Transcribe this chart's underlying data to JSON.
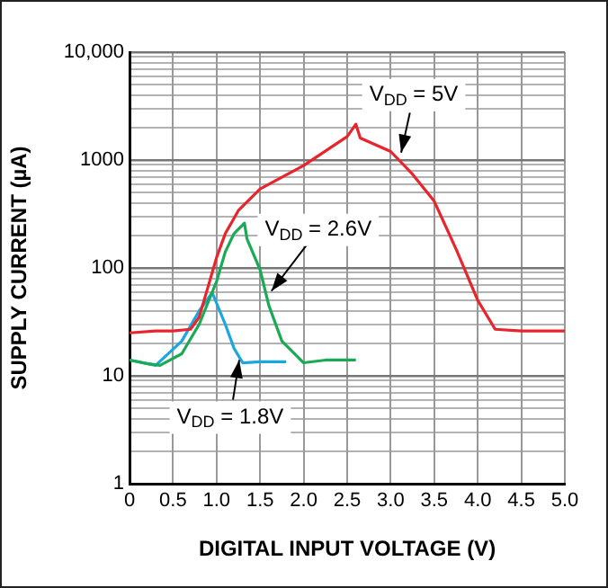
{
  "chart_data": {
    "type": "line",
    "xlabel": "DIGITAL INPUT VOLTAGE (V)",
    "ylabel": "SUPPLY CURRENT (µA)",
    "log": "y",
    "grid": true,
    "legend": false,
    "marker": "none",
    "line_style": "solid",
    "xlim": [
      0,
      5
    ],
    "xticks": [
      0,
      {
        "value": 0.5,
        "label": "0.5"
      },
      {
        "value": 1,
        "label": "1.0"
      },
      {
        "value": 1.5,
        "label": "1.5"
      },
      {
        "value": 2,
        "label": "2.0"
      },
      {
        "value": 2.5,
        "label": "2.5"
      },
      {
        "value": 3,
        "label": "3.0"
      },
      {
        "value": 3.5,
        "label": "3.5"
      },
      {
        "value": 4,
        "label": "4.0"
      },
      {
        "value": 4.5,
        "label": "4.5"
      },
      {
        "value": 5,
        "label": "5.0"
      }
    ],
    "ylim": [
      1,
      10000
    ],
    "yticks": [
      1,
      10,
      100,
      1000,
      {
        "value": 10000,
        "label": "10,000"
      }
    ],
    "series": [
      {
        "color": "#e8242c",
        "x": [
          0,
          0.3,
          0.5,
          0.7,
          0.8,
          0.9,
          1.0,
          1.1,
          1.25,
          1.5,
          2.0,
          2.5,
          2.6,
          2.65,
          3.0,
          3.25,
          3.5,
          3.75,
          4.0,
          4.2,
          4.5,
          5.0
        ],
        "values": [
          25,
          26,
          26,
          27,
          35,
          66,
          125,
          208,
          340,
          540,
          890,
          1650,
          2150,
          1600,
          1200,
          740,
          415,
          150,
          50,
          27,
          26,
          26
        ]
      },
      {
        "color": "#1aaa55",
        "x": [
          0,
          0.2,
          0.35,
          0.6,
          0.8,
          1.0,
          1.1,
          1.2,
          1.32,
          1.35,
          1.5,
          1.6,
          1.75,
          2.0,
          2.25,
          2.6
        ],
        "values": [
          14,
          13,
          12.5,
          16,
          30,
          75,
          141,
          208,
          260,
          185,
          96,
          45,
          21,
          13.2,
          14,
          14
        ]
      },
      {
        "color": "#1aa7e0",
        "x": [
          0,
          0.3,
          0.6,
          0.8,
          0.95,
          1.1,
          1.2,
          1.3,
          1.5,
          1.8
        ],
        "values": [
          14,
          12.5,
          21,
          40,
          59,
          30,
          18,
          13.2,
          13.5,
          13.5
        ]
      }
    ],
    "annotations": [
      {
        "text": "V$_{DD}$ = 5V",
        "x": 3.12,
        "y": 1170
      },
      {
        "text": "V$_{DD}$ = 2.6V",
        "x": 1.63,
        "y": 61
      },
      {
        "text": "V$_{DD}$ = 1.8V",
        "x": 1.26,
        "y": 14
      }
    ]
  }
}
